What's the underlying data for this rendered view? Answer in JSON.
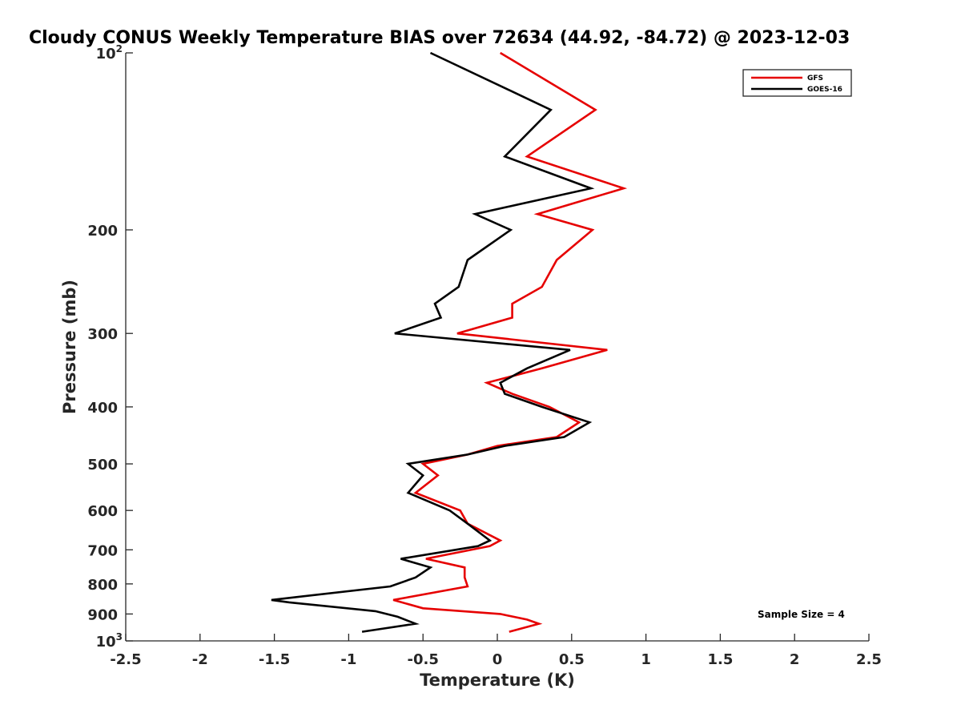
{
  "chart_data": {
    "type": "line",
    "title": "Cloudy CONUS Weekly Temperature BIAS over 72634 (44.92, -84.72) @ 2023-12-03",
    "xlabel": "Temperature (K)",
    "ylabel": "Pressure (mb)",
    "xlim": [
      -2.5,
      2.5
    ],
    "ylim": [
      100,
      1000
    ],
    "yscale": "log",
    "y_reversed": true,
    "grid": false,
    "legend_position": "top-right",
    "x_ticks": [
      "-2.5",
      "-2",
      "-1.5",
      "-1",
      "-0.5",
      "0",
      "0.5",
      "1",
      "1.5",
      "2",
      "2.5"
    ],
    "y_ticks": [
      {
        "value": 100,
        "label": "10",
        "sup": "2"
      },
      {
        "value": 200,
        "label": "200"
      },
      {
        "value": 300,
        "label": "300"
      },
      {
        "value": 400,
        "label": "400"
      },
      {
        "value": 500,
        "label": "500"
      },
      {
        "value": 600,
        "label": "600"
      },
      {
        "value": 700,
        "label": "700"
      },
      {
        "value": 800,
        "label": "800"
      },
      {
        "value": 900,
        "label": "900"
      },
      {
        "value": 1000,
        "label": "10",
        "sup": "3"
      }
    ],
    "annotation": "Sample Size = 4",
    "series": [
      {
        "name": "GFS",
        "color": "#e60000",
        "points": [
          [
            0.02,
            100
          ],
          [
            0.66,
            125
          ],
          [
            0.2,
            150
          ],
          [
            0.85,
            170
          ],
          [
            0.27,
            188
          ],
          [
            0.64,
            200
          ],
          [
            0.4,
            225
          ],
          [
            0.3,
            250
          ],
          [
            0.1,
            267
          ],
          [
            0.1,
            282
          ],
          [
            -0.27,
            300
          ],
          [
            0.74,
            320
          ],
          [
            0.3,
            344
          ],
          [
            -0.07,
            364
          ],
          [
            0.1,
            380
          ],
          [
            0.35,
            400
          ],
          [
            0.55,
            425
          ],
          [
            0.4,
            450
          ],
          [
            0.0,
            466
          ],
          [
            -0.2,
            482
          ],
          [
            -0.5,
            500
          ],
          [
            -0.4,
            523
          ],
          [
            -0.55,
            560
          ],
          [
            -0.25,
            600
          ],
          [
            -0.2,
            632
          ],
          [
            0.02,
            675
          ],
          [
            -0.05,
            690
          ],
          [
            -0.48,
            725
          ],
          [
            -0.22,
            750
          ],
          [
            -0.22,
            780
          ],
          [
            -0.2,
            808
          ],
          [
            -0.7,
            852
          ],
          [
            -0.5,
            880
          ],
          [
            0.02,
            900
          ],
          [
            0.2,
            920
          ],
          [
            0.28,
            935
          ],
          [
            0.08,
            965
          ]
        ]
      },
      {
        "name": "GOES-16",
        "color": "#000000",
        "points": [
          [
            -0.45,
            100
          ],
          [
            0.36,
            125
          ],
          [
            0.05,
            150
          ],
          [
            0.63,
            170
          ],
          [
            -0.15,
            188
          ],
          [
            0.09,
            200
          ],
          [
            -0.2,
            225
          ],
          [
            -0.26,
            250
          ],
          [
            -0.42,
            267
          ],
          [
            -0.38,
            282
          ],
          [
            -0.69,
            300
          ],
          [
            0.49,
            320
          ],
          [
            0.2,
            344
          ],
          [
            0.02,
            364
          ],
          [
            0.05,
            380
          ],
          [
            0.3,
            400
          ],
          [
            0.62,
            425
          ],
          [
            0.45,
            450
          ],
          [
            0.05,
            466
          ],
          [
            -0.2,
            482
          ],
          [
            -0.6,
            500
          ],
          [
            -0.5,
            523
          ],
          [
            -0.6,
            560
          ],
          [
            -0.32,
            600
          ],
          [
            -0.2,
            632
          ],
          [
            -0.05,
            675
          ],
          [
            -0.13,
            690
          ],
          [
            -0.65,
            725
          ],
          [
            -0.45,
            750
          ],
          [
            -0.55,
            780
          ],
          [
            -0.72,
            808
          ],
          [
            -1.52,
            852
          ],
          [
            -1.4,
            860
          ],
          [
            -0.82,
            890
          ],
          [
            -0.67,
            910
          ],
          [
            -0.55,
            935
          ],
          [
            -0.91,
            965
          ]
        ]
      }
    ]
  }
}
